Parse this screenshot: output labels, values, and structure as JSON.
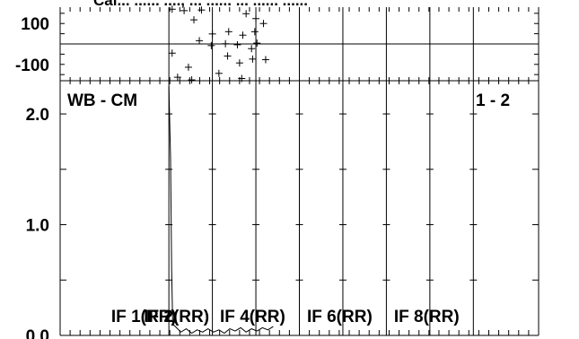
{
  "header": {
    "title_fragment": "Cal... ...... ...., ... ...... ... ...... ......"
  },
  "chart_data": [
    {
      "type": "scatter",
      "panel": "phase",
      "title": "",
      "xlabel": "",
      "ylabel": "",
      "ylim": [
        -180,
        180
      ],
      "yticks": [
        100,
        -100
      ],
      "y_tick_labels": [
        "100",
        "-100"
      ],
      "reference_line_y": 0,
      "x_channels": [
        66,
        70,
        74,
        78,
        82,
        86,
        90,
        94
      ],
      "points": [
        {
          "x": 66.3,
          "y": 170
        },
        {
          "x": 67.4,
          "y": 163
        },
        {
          "x": 69.0,
          "y": 166
        },
        {
          "x": 68.3,
          "y": 118
        },
        {
          "x": 73.1,
          "y": 148
        },
        {
          "x": 74.0,
          "y": 124
        },
        {
          "x": 74.7,
          "y": 100
        },
        {
          "x": 70.0,
          "y": 49
        },
        {
          "x": 71.5,
          "y": 60
        },
        {
          "x": 72.8,
          "y": 43
        },
        {
          "x": 73.9,
          "y": 60
        },
        {
          "x": 68.8,
          "y": 16
        },
        {
          "x": 69.9,
          "y": -8
        },
        {
          "x": 71.2,
          "y": 1
        },
        {
          "x": 72.3,
          "y": -4
        },
        {
          "x": 74.1,
          "y": 4
        },
        {
          "x": 73.6,
          "y": -23
        },
        {
          "x": 66.3,
          "y": -45
        },
        {
          "x": 71.4,
          "y": -59
        },
        {
          "x": 72.5,
          "y": -93
        },
        {
          "x": 73.7,
          "y": -74
        },
        {
          "x": 74.9,
          "y": -77
        },
        {
          "x": 67.8,
          "y": -114
        },
        {
          "x": 66.8,
          "y": -163
        },
        {
          "x": 68.1,
          "y": -176
        },
        {
          "x": 70.6,
          "y": -144
        },
        {
          "x": 72.7,
          "y": -169
        }
      ]
    },
    {
      "type": "line",
      "panel": "amplitude",
      "title": "WB - CM",
      "corner_label": "1 - 2",
      "xlabel": "",
      "ylabel": "",
      "ylim": [
        0,
        2.3
      ],
      "yticks": [
        0.0,
        1.0,
        2.0
      ],
      "y_tick_labels": [
        "0.0",
        "1.0",
        "2.0"
      ],
      "if_labels": [
        {
          "label": "IF 1(RR)",
          "x": 64.0
        },
        {
          "label": "IF 2(RR)",
          "x": 67.0
        },
        {
          "label": "IF 4(RR)",
          "x": 74.0
        },
        {
          "label": "IF 6(RR)",
          "x": 82.0
        },
        {
          "label": "IF 8(RR)",
          "x": 90.0
        }
      ],
      "series": [
        {
          "points": [
            {
              "x": 66.0,
              "y": 2.25
            },
            {
              "x": 66.15,
              "y": 1.6
            },
            {
              "x": 66.25,
              "y": 0.6
            },
            {
              "x": 66.35,
              "y": 0.1
            },
            {
              "x": 66.6,
              "y": 0.08
            },
            {
              "x": 67.1,
              "y": 0.03
            },
            {
              "x": 67.6,
              "y": 0.06
            },
            {
              "x": 68.1,
              "y": 0.02
            },
            {
              "x": 68.6,
              "y": 0.05
            },
            {
              "x": 69.1,
              "y": 0.03
            },
            {
              "x": 69.6,
              "y": 0.06
            },
            {
              "x": 70.1,
              "y": 0.03
            },
            {
              "x": 70.6,
              "y": 0.05
            },
            {
              "x": 71.1,
              "y": 0.02
            },
            {
              "x": 71.6,
              "y": 0.06
            },
            {
              "x": 72.1,
              "y": 0.04
            },
            {
              "x": 72.6,
              "y": 0.07
            },
            {
              "x": 73.1,
              "y": 0.03
            },
            {
              "x": 73.6,
              "y": 0.06
            },
            {
              "x": 74.1,
              "y": 0.04
            },
            {
              "x": 74.6,
              "y": 0.07
            },
            {
              "x": 75.1,
              "y": 0.05
            },
            {
              "x": 75.6,
              "y": 0.08
            }
          ]
        }
      ]
    }
  ]
}
